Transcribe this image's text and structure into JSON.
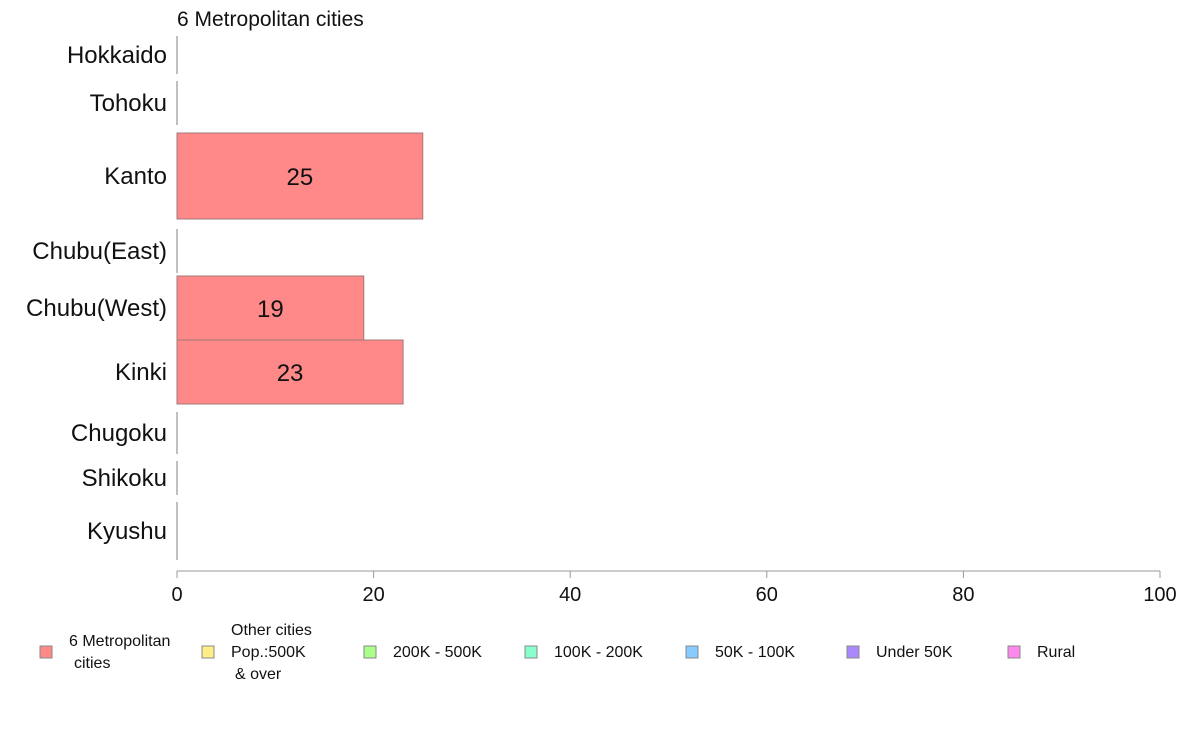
{
  "chart_data": {
    "type": "bar",
    "orientation": "horizontal",
    "title": "6 Metropolitan cities",
    "categories": [
      "Hokkaido",
      "Tohoku",
      "Kanto",
      "Chubu(East)",
      "Chubu(West)",
      "Kinki",
      "Chugoku",
      "Shikoku",
      "Kyushu"
    ],
    "series": [
      {
        "name": "6 Metropolitan cities",
        "values": [
          0,
          0,
          25,
          0,
          19,
          23,
          0,
          0,
          0
        ],
        "color": "#ff8888"
      }
    ],
    "data_labels": [
      "",
      "",
      "25",
      "",
      "19",
      "23",
      "",
      "",
      ""
    ],
    "xlim": [
      0,
      100
    ],
    "xticks": [
      "0",
      "20",
      "40",
      "60",
      "80",
      "100"
    ],
    "grid": false,
    "legend_position": "bottom",
    "legend": [
      {
        "lines": [
          "6 Metropolitan",
          "cities"
        ],
        "color": "#ff8888"
      },
      {
        "lines": [
          "Other cities",
          "Pop.:500K",
          "& over"
        ],
        "color": "#ffee88"
      },
      {
        "lines": [
          "200K - 500K"
        ],
        "color": "#aaff88"
      },
      {
        "lines": [
          "100K - 200K"
        ],
        "color": "#88ffcc"
      },
      {
        "lines": [
          "50K - 100K"
        ],
        "color": "#88ccff"
      },
      {
        "lines": [
          "Under 50K"
        ],
        "color": "#aa88ff"
      },
      {
        "lines": [
          "Rural"
        ],
        "color": "#ff88ee"
      }
    ]
  }
}
